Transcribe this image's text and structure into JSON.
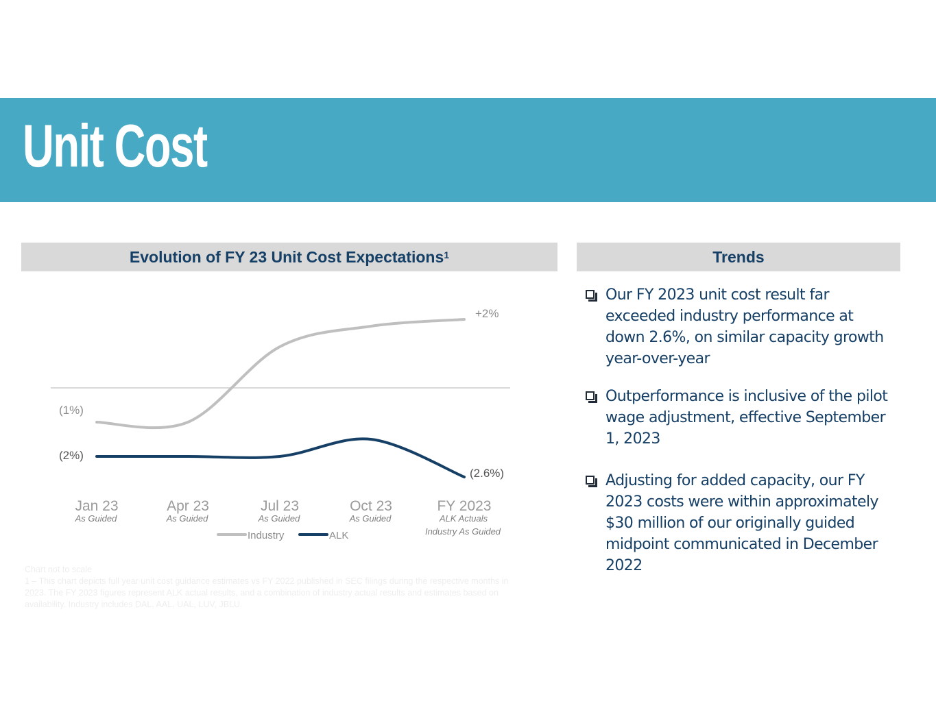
{
  "page": {
    "title": "Unit Cost"
  },
  "chart_panel": {
    "title": "Evolution of FY 23 Unit Cost Expectations",
    "superscript": "1"
  },
  "trends_panel": {
    "title": "Trends",
    "items": [
      "Our FY 2023 unit cost result far exceeded industry performance at down 2.6%, on similar capacity growth year-over-year",
      "Outperformance is inclusive of the pilot wage adjustment, effective September 1, 2023",
      "Adjusting for added capacity, our FY 2023 costs were within approximately $30 million of our originally guided midpoint communicated in December 2022"
    ]
  },
  "footnotes": {
    "scale_note": "Chart not to scale",
    "note_1": "1 – This chart depicts full year unit cost guidance estimates vs FY 2022 published in SEC filings during the respective months in 2023. The FY 2023 figures represent ALK actual results, and a combination of industry actual results and estimates based on availability. Industry includes DAL, AAL, UAL, LUV, JBLU."
  },
  "colors": {
    "banner": "#48a9c5",
    "navy": "#163f66",
    "industry": "#bfbfbf",
    "alk": "#163f66",
    "header_bg": "#d9d9d9"
  },
  "chart_data": {
    "type": "line",
    "title": "Evolution of FY 23 Unit Cost Expectations",
    "categories": [
      "Jan 23",
      "Apr 23",
      "Jul 23",
      "Oct 23",
      "FY 2023"
    ],
    "category_sublabels": [
      "As Guided",
      "As Guided",
      "As Guided",
      "As Guided",
      "ALK Actuals"
    ],
    "category_sublabels_2": [
      "",
      "",
      "",
      "",
      "Industry As Guided"
    ],
    "series": [
      {
        "name": "Industry",
        "values": [
          -1.0,
          -1.0,
          1.2,
          1.8,
          2.0
        ]
      },
      {
        "name": "ALK",
        "values": [
          -2.0,
          -2.0,
          -2.0,
          -1.5,
          -2.6
        ]
      }
    ],
    "data_labels": {
      "industry_start": "(1%)",
      "industry_end": "+2%",
      "alk_start": "(2%)",
      "alk_end": "(2.6%)"
    },
    "baseline": 0,
    "ylim": [
      -3,
      2.5
    ],
    "legend_position": "bottom",
    "note": "Chart not to scale"
  }
}
